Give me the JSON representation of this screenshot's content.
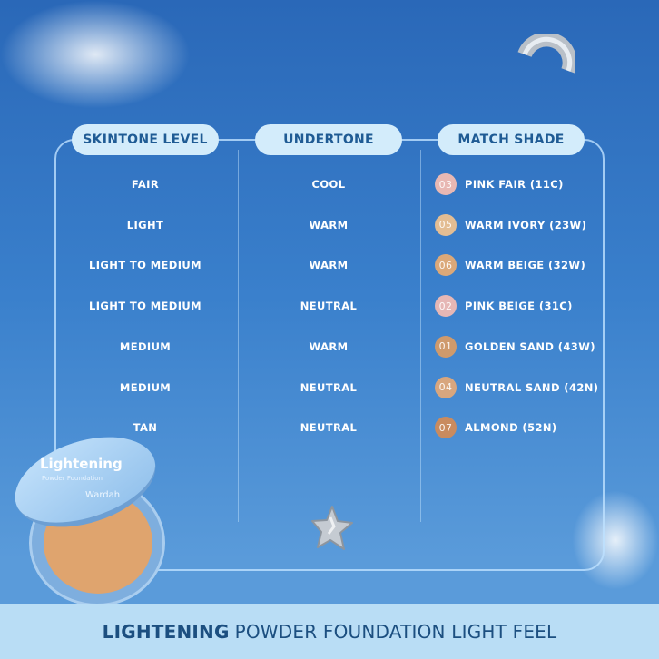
{
  "headers": {
    "skintone": "SKINTONE LEVEL",
    "undertone": "UNDERTONE",
    "shade": "MATCH SHADE"
  },
  "rows": [
    {
      "skintone": "FAIR",
      "undertone": "COOL",
      "num": "03",
      "shade": "PINK FAIR (11C)",
      "color": "#e8b8b3"
    },
    {
      "skintone": "LIGHT",
      "undertone": "WARM",
      "num": "05",
      "shade": "WARM IVORY (23W)",
      "color": "#e3bd93"
    },
    {
      "skintone": "LIGHT TO MEDIUM",
      "undertone": "WARM",
      "num": "06",
      "shade": "WARM BEIGE (32W)",
      "color": "#dba879"
    },
    {
      "skintone": "LIGHT TO MEDIUM",
      "undertone": "NEUTRAL",
      "num": "02",
      "shade": "PINK BEIGE (31C)",
      "color": "#e6b7b5"
    },
    {
      "skintone": "MEDIUM",
      "undertone": "WARM",
      "num": "01",
      "shade": "GOLDEN SAND (43W)",
      "color": "#cf9a6c"
    },
    {
      "skintone": "MEDIUM",
      "undertone": "NEUTRAL",
      "num": "04",
      "shade": "NEUTRAL SAND (42N)",
      "color": "#d8a67e"
    },
    {
      "skintone": "TAN",
      "undertone": "NEUTRAL",
      "num": "07",
      "shade": "ALMOND (52N)",
      "color": "#c98b5f"
    }
  ],
  "product": {
    "name": "Lightening",
    "sub": "Powder Foundation",
    "brand": "Wardah"
  },
  "footer": {
    "bold": "LIGHTENING",
    "rest": "POWDER FOUNDATION LIGHT FEEL"
  }
}
